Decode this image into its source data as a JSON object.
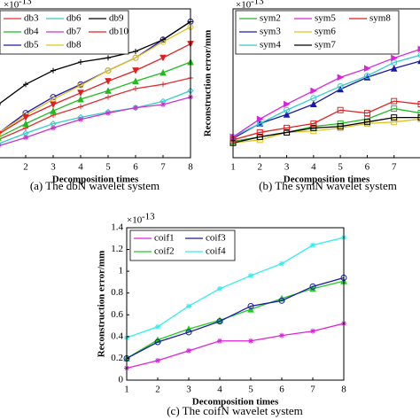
{
  "chart_data": [
    {
      "type": "line",
      "caption": "(a) The dbN wavelet system",
      "xlabel": "Decomposition times",
      "y_scale_label": "×10",
      "y_scale_exponent": "-13",
      "x": [
        1,
        2,
        3,
        4,
        5,
        6,
        7,
        8
      ],
      "xlim": [
        1,
        8
      ],
      "xticks": [
        2,
        3,
        4,
        5,
        6,
        7,
        8
      ],
      "ylim": [
        0,
        1.4
      ],
      "series": [
        {
          "name": "db3",
          "color": "#e03030",
          "marker": "+",
          "values": [
            0.17,
            0.28,
            0.4,
            0.48,
            0.57,
            0.65,
            0.69,
            0.75
          ]
        },
        {
          "name": "db4",
          "color": "#22bb22",
          "marker": "^",
          "values": [
            0.19,
            0.32,
            0.44,
            0.55,
            0.63,
            0.72,
            0.8,
            0.9
          ]
        },
        {
          "name": "db5",
          "color": "#1a1aa8",
          "marker": "o",
          "values": [
            0.23,
            0.42,
            0.57,
            0.69,
            0.82,
            0.94,
            1.11,
            1.28
          ]
        },
        {
          "name": "db6",
          "color": "#33cccc",
          "marker": "d",
          "values": [
            0.13,
            0.23,
            0.32,
            0.38,
            0.43,
            0.47,
            0.53,
            0.63
          ]
        },
        {
          "name": "db7",
          "color": "#cc33cc",
          "marker": "*",
          "values": [
            0.11,
            0.19,
            0.28,
            0.36,
            0.42,
            0.47,
            0.5,
            0.57
          ]
        },
        {
          "name": "db8",
          "color": "#e0c020",
          "marker": "o",
          "values": [
            0.23,
            0.4,
            0.55,
            0.68,
            0.82,
            0.94,
            1.09,
            1.23
          ]
        },
        {
          "name": "db9",
          "color": "#000000",
          "marker": "+",
          "values": [
            0.5,
            0.69,
            0.82,
            0.9,
            0.94,
            1.0,
            1.11,
            1.28
          ]
        },
        {
          "name": "db10",
          "color": "#e02020",
          "marker": "v",
          "values": [
            0.22,
            0.38,
            0.5,
            0.61,
            0.72,
            0.82,
            0.94,
            1.07
          ]
        }
      ]
    },
    {
      "type": "line",
      "caption": "(b) The symN wavelet system",
      "xlabel": "Decomposition times",
      "ylabel": "Reconstruction error/mm",
      "y_scale_label": "×10",
      "y_scale_exponent": "-13",
      "x": [
        1,
        2,
        3,
        4,
        5,
        6,
        7,
        8
      ],
      "xlim": [
        1,
        8
      ],
      "xticks": [
        1,
        2,
        3,
        4,
        5,
        6,
        7
      ],
      "ylim": [
        0,
        1.0
      ],
      "series": [
        {
          "name": "sym2",
          "color": "#22bb22",
          "marker": "s",
          "values": [
            0.11,
            0.14,
            0.17,
            0.21,
            0.23,
            0.26,
            0.33,
            0.3
          ]
        },
        {
          "name": "sym3",
          "color": "#1a1aa8",
          "marker": "^",
          "values": [
            0.13,
            0.23,
            0.29,
            0.36,
            0.46,
            0.54,
            0.6,
            0.65
          ]
        },
        {
          "name": "sym4",
          "color": "#33cccc",
          "marker": "o",
          "values": [
            0.14,
            0.23,
            0.32,
            0.4,
            0.48,
            0.55,
            0.64,
            0.69
          ]
        },
        {
          "name": "sym5",
          "color": "#dd22dd",
          "marker": ">",
          "values": [
            0.14,
            0.26,
            0.36,
            0.45,
            0.54,
            0.6,
            0.67,
            0.73
          ]
        },
        {
          "name": "sym6",
          "color": "#e0c020",
          "marker": "s",
          "values": [
            0.1,
            0.12,
            0.17,
            0.18,
            0.2,
            0.23,
            0.24,
            0.26
          ]
        },
        {
          "name": "sym7",
          "color": "#000000",
          "marker": "s",
          "values": [
            0.1,
            0.14,
            0.17,
            0.2,
            0.21,
            0.24,
            0.27,
            0.27
          ]
        },
        {
          "name": "sym8",
          "color": "#e02020",
          "marker": "s",
          "values": [
            0.12,
            0.17,
            0.2,
            0.23,
            0.32,
            0.3,
            0.38,
            0.36
          ]
        }
      ]
    },
    {
      "type": "line",
      "caption": "(c) The coifN wavelet system",
      "xlabel": "Decomposition times",
      "ylabel": "Reconstruction error/mm",
      "y_scale_label": "×10",
      "y_scale_exponent": "-13",
      "x": [
        1,
        2,
        3,
        4,
        5,
        6,
        7,
        8
      ],
      "xlim": [
        1,
        8
      ],
      "xticks": [
        1,
        2,
        3,
        4,
        5,
        6,
        7,
        8
      ],
      "ylim": [
        0,
        1.4
      ],
      "yticks": [
        0,
        0.2,
        0.4,
        0.6,
        0.8,
        1,
        1.2,
        1.4
      ],
      "series": [
        {
          "name": "coif1",
          "color": "#dd22dd",
          "marker": "*",
          "values": [
            0.11,
            0.18,
            0.27,
            0.36,
            0.36,
            0.41,
            0.45,
            0.52
          ]
        },
        {
          "name": "coif2",
          "color": "#22cc22",
          "marker": "^",
          "values": [
            0.2,
            0.37,
            0.47,
            0.55,
            0.65,
            0.75,
            0.84,
            0.91
          ]
        },
        {
          "name": "coif3",
          "color": "#1a1aa8",
          "marker": "o",
          "values": [
            0.2,
            0.35,
            0.44,
            0.54,
            0.68,
            0.73,
            0.86,
            0.94
          ]
        },
        {
          "name": "coif4",
          "color": "#33eeee",
          "marker": "*",
          "values": [
            0.39,
            0.49,
            0.68,
            0.84,
            0.96,
            1.07,
            1.24,
            1.31
          ]
        }
      ]
    }
  ]
}
